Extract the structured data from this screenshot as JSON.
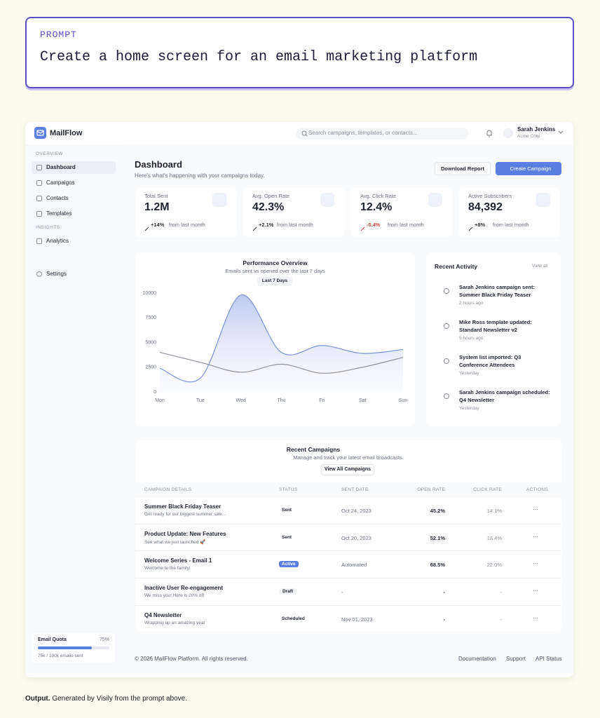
{
  "prompt": {
    "label": "PROMPT",
    "text": "Create a home screen for an email marketing platform"
  },
  "app": {
    "brand": "MailFlow",
    "search_placeholder": "Search campaigns, templates, or contacts...",
    "user": {
      "name": "Sarah Jenkins",
      "org": "Acme Corp"
    }
  },
  "sidebar": {
    "sections": [
      {
        "title": "OVERVIEW",
        "items": [
          "Dashboard",
          "Campaigns",
          "Contacts",
          "Templates"
        ]
      },
      {
        "title": "INSIGHTS",
        "items": [
          "Analytics"
        ]
      }
    ],
    "settings": "Settings",
    "quota": {
      "label": "Email Quota",
      "percent": "75%",
      "detail": "75k / 100k emails sent"
    }
  },
  "header": {
    "title": "Dashboard",
    "subtitle": "Here's what's happening with your campaigns today.",
    "buttons": [
      "Download Report",
      "Create Campaign"
    ]
  },
  "stats": [
    {
      "label": "Total Sent",
      "value": "1.2M",
      "change": "+14%",
      "note": "from last month"
    },
    {
      "label": "Avg. Open Rate",
      "value": "42.3%",
      "change": "+2.1%",
      "note": "from last month"
    },
    {
      "label": "Avg. Click Rate",
      "value": "12.4%",
      "change": "-0.4%",
      "note": "from last month"
    },
    {
      "label": "Active Subscribers",
      "value": "84,392",
      "change": "+8%",
      "note": "from last month"
    }
  ],
  "chart_data": {
    "type": "line",
    "title": "Performance Overview",
    "subtitle": "Emails sent vs opened over the last 7 days",
    "filter": "Last 7 Days",
    "categories": [
      "Mon",
      "Tue",
      "Wed",
      "Thu",
      "Fri",
      "Sat",
      "Sun"
    ],
    "series": [
      {
        "color": "#7b93d9",
        "values": [
          2400,
          1400,
          9800,
          4000,
          4700,
          3900,
          4300
        ]
      },
      {
        "color": "#8d929c",
        "values": [
          4000,
          3000,
          2000,
          2800,
          1900,
          2500,
          3500
        ]
      }
    ],
    "ylim": [
      0,
      10000
    ],
    "yticks": [
      0,
      2500,
      5000,
      7500,
      10000
    ]
  },
  "activity": {
    "title": "Recent Activity",
    "link": "View all",
    "items": [
      {
        "text": "Sarah Jenkins campaign sent: Summer Black Friday Teaser",
        "time": "2 hours ago"
      },
      {
        "text": "Mike Ross template updated: Standard Newsletter v2",
        "time": "5 hours ago"
      },
      {
        "text": "System list imported: Q3 Conference Attendees",
        "time": "Yesterday"
      },
      {
        "text": "Sarah Jenkins campaign scheduled: Q4 Newsletter",
        "time": "Yesterday"
      }
    ]
  },
  "campaigns": {
    "title": "Recent Campaigns",
    "subtitle": "Manage and track your latest email broadcasts.",
    "button": "View All Campaigns",
    "columns": [
      "CAMPAIGN DETAILS",
      "STATUS",
      "SENT DATE",
      "OPEN RATE",
      "CLICK RATE",
      "ACTIONS"
    ],
    "rows": [
      {
        "name": "Summer Black Friday Teaser",
        "desc": "Get ready for our biggest summer sale...",
        "status": "Sent",
        "date": "Oct 24, 2023",
        "open": "45.2%",
        "click": "14.1%",
        "actions": "···"
      },
      {
        "name": "Product Update: New Features",
        "desc": "See what we just launched 🚀",
        "status": "Sent",
        "date": "Oct 20, 2023",
        "open": "52.1%",
        "click": "18.4%",
        "actions": "···"
      },
      {
        "name": "Welcome Series - Email 1",
        "desc": "Welcome to the family!",
        "status": "Active",
        "date": "Automated",
        "open": "68.5%",
        "click": "22.0%",
        "actions": "···"
      },
      {
        "name": "Inactive User Re-engagement",
        "desc": "We miss you! Here is 20% off",
        "status": "Draft",
        "date": "-",
        "open": "-",
        "click": "-",
        "actions": "···"
      },
      {
        "name": "Q4 Newsletter",
        "desc": "Wrapping up an amazing year",
        "status": "Scheduled",
        "date": "Nov 01, 2023",
        "open": "-",
        "click": "-",
        "actions": "···"
      }
    ]
  },
  "footer": {
    "copyright": "© 2026 MailFlow Platform. All rights reserved.",
    "links": [
      "Documentation",
      "Support",
      "API Status"
    ]
  },
  "caption": {
    "lead": "Output.",
    "text": "Generated by Visily from the prompt above."
  }
}
